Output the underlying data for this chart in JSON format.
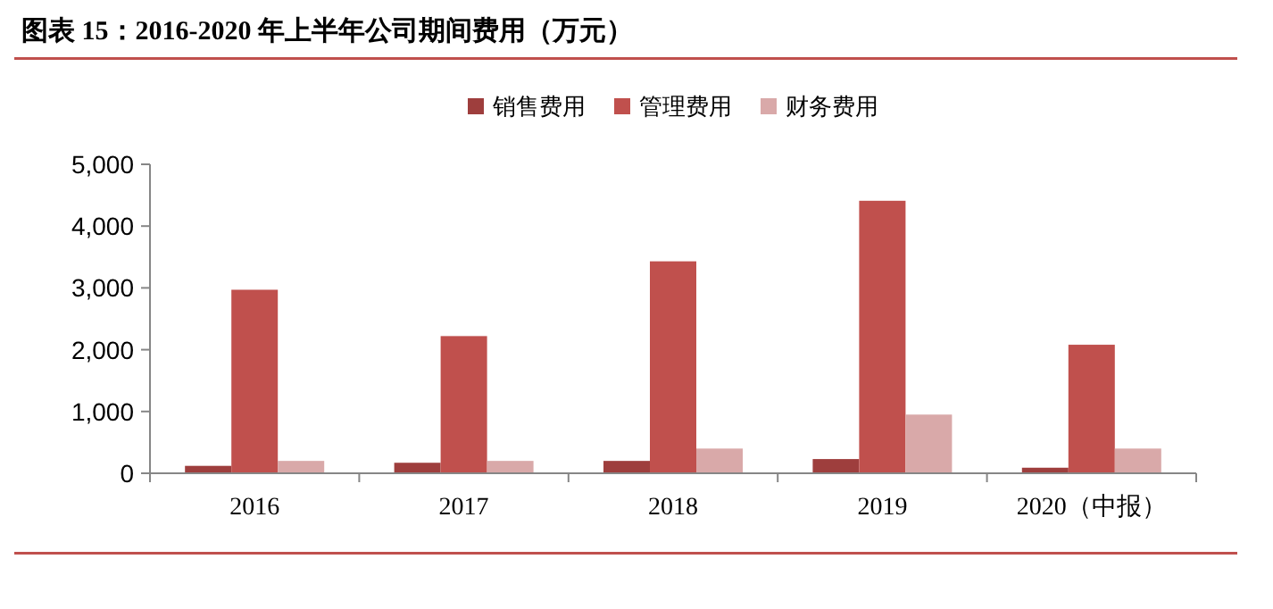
{
  "chart_data": {
    "type": "bar",
    "title": "图表 15：2016-2020 年上半年公司期间费用（万元）",
    "categories": [
      "2016",
      "2017",
      "2018",
      "2019",
      "2020（中报）"
    ],
    "series": [
      {
        "name": "销售费用",
        "color": "#9e3e3d",
        "values": [
          120,
          170,
          200,
          230,
          90
        ]
      },
      {
        "name": "管理费用",
        "color": "#c0504d",
        "values": [
          2970,
          2220,
          3430,
          4410,
          2080
        ]
      },
      {
        "name": "财务费用",
        "color": "#d9a9a9",
        "values": [
          200,
          200,
          400,
          950,
          400
        ]
      }
    ],
    "ylim": [
      0,
      5000
    ],
    "yticks": [
      0,
      {
        "value": 1000,
        "label": "1,000"
      },
      {
        "value": 2000,
        "label": "2,000"
      },
      {
        "value": 3000,
        "label": "3,000"
      },
      {
        "value": 4000,
        "label": "4,000"
      },
      {
        "value": 5000,
        "label": "5,000"
      }
    ],
    "legend": "top",
    "grid": false
  }
}
